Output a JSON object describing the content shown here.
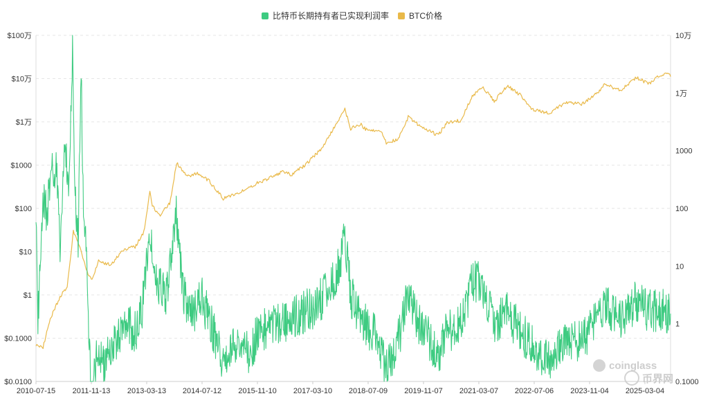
{
  "chart_data": {
    "type": "line",
    "legend": {
      "position": "top-center",
      "items": [
        {
          "label": "比特币长期持有者已实现利润率",
          "color": "#3ecb81"
        },
        {
          "label": "BTC价格",
          "color": "#e9b949"
        }
      ]
    },
    "x_axis": {
      "type": "time",
      "range": [
        "2010-07-15",
        "2025-10-15"
      ],
      "tick_labels": [
        "2010-07-15",
        "2011-11-13",
        "2013-03-13",
        "2014-07-12",
        "2015-11-10",
        "2017-03-10",
        "2018-07-09",
        "2019-11-07",
        "2021-03-07",
        "2022-07-06",
        "2023-11-04",
        "2025-03-04"
      ]
    },
    "y_axis_left": {
      "scale": "log",
      "range": [
        0.01,
        1000000
      ],
      "tick_values": [
        0.01,
        0.1,
        1,
        10,
        100,
        1000,
        10000,
        100000,
        1000000
      ],
      "tick_labels": [
        "$0.0100",
        "$0.1000",
        "$1",
        "$10",
        "$100",
        "$1000",
        "$1万",
        "$10万",
        "$100万"
      ]
    },
    "y_axis_right": {
      "scale": "log",
      "range": [
        0.1,
        100000
      ],
      "tick_values": [
        0.1,
        1,
        10,
        100,
        1000,
        10000,
        100000
      ],
      "tick_labels": [
        "0.1000",
        "1",
        "10",
        "100",
        "1000",
        "1万",
        "10万"
      ]
    },
    "grid": {
      "horizontal": true,
      "style": "dashed"
    },
    "series": [
      {
        "name": "BTC价格",
        "axis": "left",
        "color": "#e9b949",
        "points": [
          [
            "2010-07-15",
            0.07
          ],
          [
            "2010-09-15",
            0.06
          ],
          [
            "2010-11-10",
            0.25
          ],
          [
            "2011-02-10",
            0.9
          ],
          [
            "2011-04-15",
            1.5
          ],
          [
            "2011-06-08",
            30
          ],
          [
            "2011-08-01",
            13
          ],
          [
            "2011-10-15",
            3
          ],
          [
            "2011-11-20",
            2.3
          ],
          [
            "2012-01-15",
            6
          ],
          [
            "2012-05-01",
            5
          ],
          [
            "2012-08-15",
            11
          ],
          [
            "2012-12-01",
            13
          ],
          [
            "2013-02-15",
            28
          ],
          [
            "2013-04-10",
            230
          ],
          [
            "2013-05-01",
            110
          ],
          [
            "2013-07-10",
            70
          ],
          [
            "2013-10-01",
            130
          ],
          [
            "2013-12-01",
            1150
          ],
          [
            "2014-02-25",
            550
          ],
          [
            "2014-06-01",
            650
          ],
          [
            "2014-09-15",
            420
          ],
          [
            "2015-01-14",
            170
          ],
          [
            "2015-06-01",
            230
          ],
          [
            "2015-11-01",
            380
          ],
          [
            "2016-01-01",
            430
          ],
          [
            "2016-06-15",
            700
          ],
          [
            "2016-09-01",
            600
          ],
          [
            "2017-01-01",
            1000
          ],
          [
            "2017-06-01",
            2500
          ],
          [
            "2017-12-17",
            19500
          ],
          [
            "2018-02-06",
            6900
          ],
          [
            "2018-05-01",
            9000
          ],
          [
            "2018-07-01",
            6300
          ],
          [
            "2018-11-01",
            6300
          ],
          [
            "2018-12-15",
            3200
          ],
          [
            "2019-04-01",
            4100
          ],
          [
            "2019-06-26",
            12900
          ],
          [
            "2019-10-01",
            8300
          ],
          [
            "2020-03-12",
            4900
          ],
          [
            "2020-06-01",
            9500
          ],
          [
            "2020-10-01",
            10800
          ],
          [
            "2021-01-08",
            40000
          ],
          [
            "2021-04-14",
            63500
          ],
          [
            "2021-07-20",
            29800
          ],
          [
            "2021-11-10",
            68000
          ],
          [
            "2022-03-01",
            43000
          ],
          [
            "2022-06-18",
            19000
          ],
          [
            "2022-11-21",
            15700
          ],
          [
            "2023-04-01",
            28000
          ],
          [
            "2023-09-01",
            26000
          ],
          [
            "2024-01-01",
            44000
          ],
          [
            "2024-03-14",
            73000
          ],
          [
            "2024-08-05",
            54000
          ],
          [
            "2024-12-17",
            106000
          ],
          [
            "2025-04-08",
            76000
          ],
          [
            "2025-07-14",
            120000
          ],
          [
            "2025-10-06",
            125000
          ],
          [
            "2025-10-15",
            111000
          ]
        ]
      },
      {
        "name": "比特币长期持有者已实现利润率",
        "axis": "right",
        "color": "#3ecb81",
        "points": [
          [
            "2010-07-15",
            100
          ],
          [
            "2010-08-01",
            1
          ],
          [
            "2010-09-10",
            150
          ],
          [
            "2010-10-20",
            80
          ],
          [
            "2010-12-01",
            500
          ],
          [
            "2011-01-15",
            400
          ],
          [
            "2011-02-15",
            15
          ],
          [
            "2011-03-20",
            1500
          ],
          [
            "2011-05-01",
            300
          ],
          [
            "2011-06-01",
            50000
          ],
          [
            "2011-06-20",
            300
          ],
          [
            "2011-07-20",
            30
          ],
          [
            "2011-08-15",
            40000
          ],
          [
            "2011-09-01",
            200
          ],
          [
            "2011-10-01",
            10
          ],
          [
            "2011-10-25",
            0.3
          ],
          [
            "2011-11-20",
            0.05
          ],
          [
            "2012-01-15",
            0.5
          ],
          [
            "2012-03-01",
            0.2
          ],
          [
            "2012-06-01",
            0.5
          ],
          [
            "2012-09-01",
            1
          ],
          [
            "2012-12-01",
            0.7
          ],
          [
            "2013-02-01",
            2
          ],
          [
            "2013-04-10",
            40
          ],
          [
            "2013-06-01",
            5
          ],
          [
            "2013-09-01",
            3
          ],
          [
            "2013-11-01",
            25
          ],
          [
            "2013-12-01",
            80
          ],
          [
            "2014-01-15",
            5
          ],
          [
            "2014-03-01",
            2
          ],
          [
            "2014-05-01",
            1.5
          ],
          [
            "2014-07-01",
            3
          ],
          [
            "2014-10-01",
            1
          ],
          [
            "2015-01-14",
            0.2
          ],
          [
            "2015-05-01",
            0.4
          ],
          [
            "2015-09-01",
            0.3
          ],
          [
            "2015-12-01",
            0.8
          ],
          [
            "2016-04-01",
            0.9
          ],
          [
            "2016-08-01",
            1.2
          ],
          [
            "2016-12-01",
            1.5
          ],
          [
            "2017-04-01",
            2
          ],
          [
            "2017-08-01",
            4
          ],
          [
            "2017-11-01",
            10
          ],
          [
            "2017-12-17",
            40
          ],
          [
            "2018-02-06",
            3
          ],
          [
            "2018-06-01",
            1
          ],
          [
            "2018-09-01",
            0.7
          ],
          [
            "2018-12-15",
            0.15
          ],
          [
            "2019-03-01",
            0.3
          ],
          [
            "2019-06-26",
            3
          ],
          [
            "2019-10-01",
            1
          ],
          [
            "2020-03-12",
            0.3
          ],
          [
            "2020-06-01",
            0.7
          ],
          [
            "2020-10-01",
            1
          ],
          [
            "2021-01-08",
            5
          ],
          [
            "2021-03-01",
            6
          ],
          [
            "2021-05-20",
            2
          ],
          [
            "2021-08-01",
            1
          ],
          [
            "2021-11-10",
            1.5
          ],
          [
            "2022-03-01",
            0.8
          ],
          [
            "2022-06-18",
            0.4
          ],
          [
            "2022-11-21",
            0.2
          ],
          [
            "2023-03-01",
            0.4
          ],
          [
            "2023-09-01",
            0.5
          ],
          [
            "2023-12-01",
            0.9
          ],
          [
            "2024-03-14",
            2
          ],
          [
            "2024-08-05",
            1.3
          ],
          [
            "2024-12-17",
            2.5
          ],
          [
            "2025-04-08",
            1.6
          ],
          [
            "2025-07-14",
            1.8
          ],
          [
            "2025-10-15",
            1.5
          ]
        ]
      }
    ]
  },
  "watermark": {
    "brand": "coinglass",
    "brand_cn": "币界网"
  }
}
